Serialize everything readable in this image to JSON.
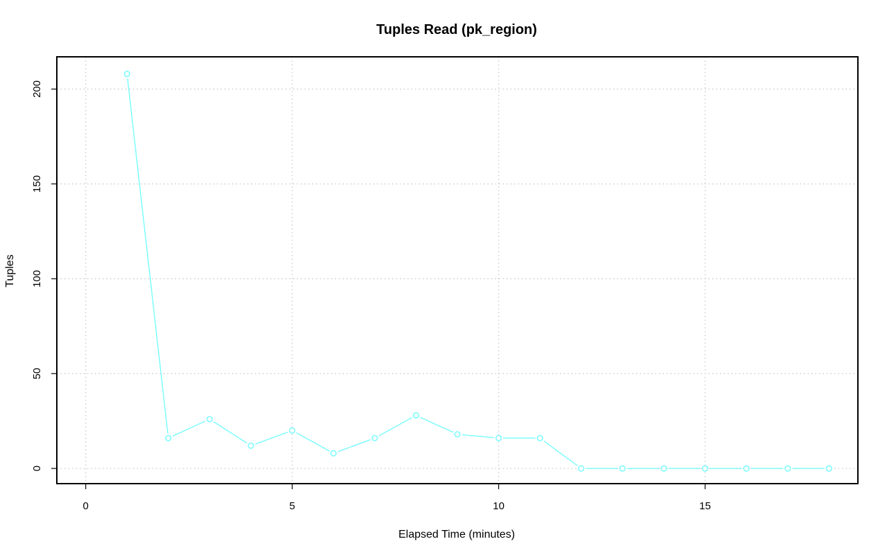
{
  "chart_data": {
    "type": "line",
    "title": "Tuples Read (pk_region)",
    "xlabel": "Elapsed Time (minutes)",
    "ylabel": "Tuples",
    "xlim": [
      -0.7,
      18.7
    ],
    "ylim": [
      -8,
      217
    ],
    "x_ticks": [
      0,
      5,
      10,
      15
    ],
    "y_ticks": [
      0,
      50,
      100,
      150,
      200
    ],
    "grid": true,
    "series": [
      {
        "color": "#7ffcfc",
        "x": [
          1,
          2,
          3,
          4,
          5,
          6,
          7,
          8,
          9,
          10,
          11,
          12,
          13,
          14,
          15,
          16,
          17,
          18
        ],
        "y": [
          208,
          16,
          26,
          12,
          20,
          8,
          16,
          28,
          18,
          16,
          16,
          0,
          0,
          0,
          0,
          0,
          0,
          0
        ]
      }
    ]
  }
}
